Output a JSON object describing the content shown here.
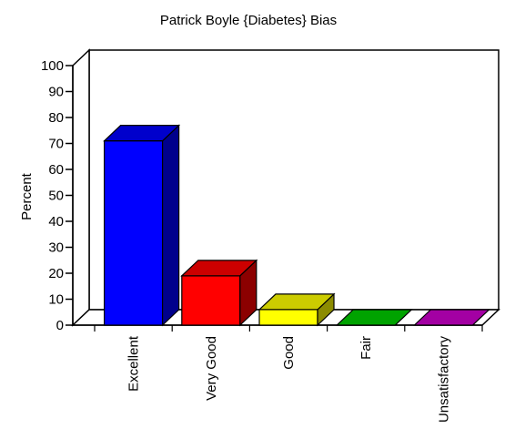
{
  "chart_data": {
    "type": "bar",
    "title": "Patrick Boyle {Diabetes} Bias",
    "ylabel": "Percent",
    "xlabel": "",
    "ylim": [
      0,
      100
    ],
    "yticks": [
      0,
      10,
      20,
      30,
      40,
      50,
      60,
      70,
      80,
      90,
      100
    ],
    "categories": [
      "Excellent",
      "Very Good",
      "Good",
      "Fair",
      "Unsatisfactory"
    ],
    "values": [
      71,
      19,
      6,
      0,
      0
    ],
    "colors": [
      "#0000ff",
      "#ff0000",
      "#ffff00",
      "#00cc00",
      "#cc00cc"
    ],
    "grid": false,
    "legend": "none",
    "style": "3d"
  }
}
